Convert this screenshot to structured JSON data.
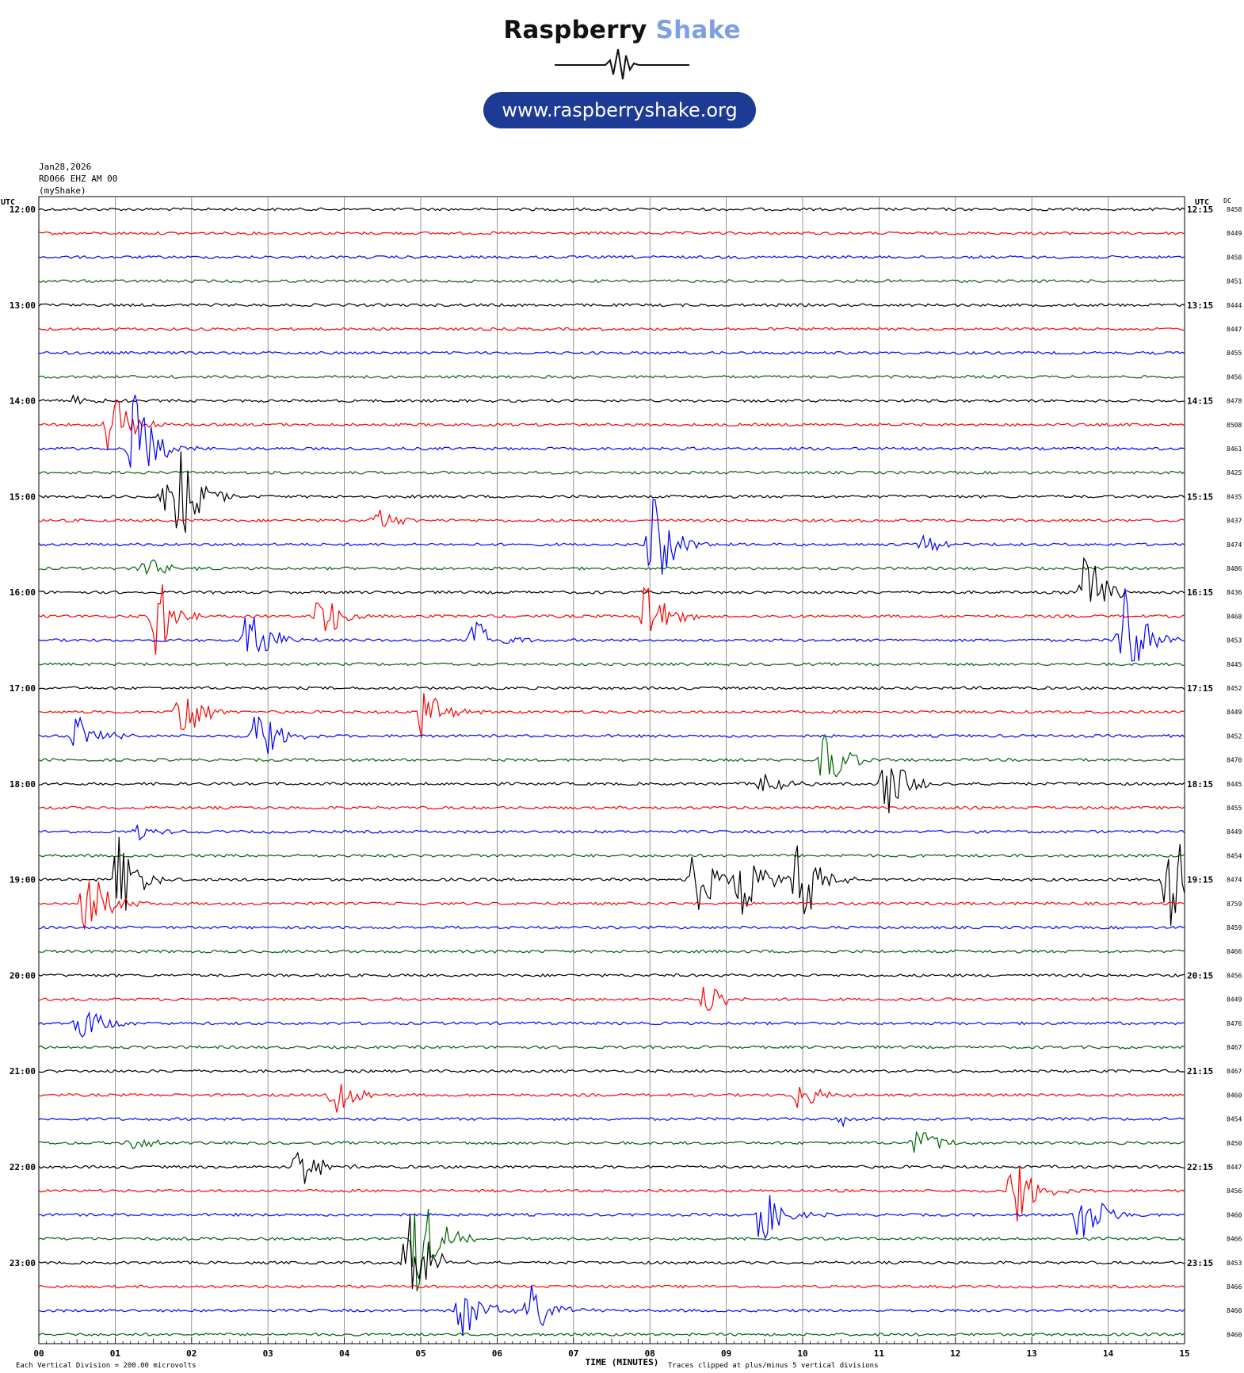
{
  "header": {
    "brand_word1": "Raspberry",
    "brand_word2": "Shake",
    "url": "www.raspberryshake.org",
    "date": "Jan28,2026",
    "station": "RD066 EHZ AM 00",
    "source": "(myShake)"
  },
  "colors": {
    "brand_accent": "#7f9fe3",
    "url_pill": "#1d3b95",
    "trace_cycle": [
      "#000000",
      "#ff0000",
      "#0000ff",
      "#006400"
    ]
  },
  "chart_data": {
    "type": "line",
    "title": "",
    "xlabel": "TIME (MINUTES)",
    "left_axis_label": "UTC",
    "right_axis_label": "UTC",
    "dc_label": "DC",
    "xlim": [
      0,
      15
    ],
    "x_ticks": [
      "00",
      "01",
      "02",
      "03",
      "04",
      "05",
      "06",
      "07",
      "08",
      "09",
      "10",
      "11",
      "12",
      "13",
      "14",
      "15"
    ],
    "grid": true,
    "left_time_labels": [
      "12:00",
      "13:00",
      "14:00",
      "15:00",
      "16:00",
      "17:00",
      "18:00",
      "19:00",
      "20:00",
      "21:00",
      "22:00",
      "23:00"
    ],
    "right_time_labels": [
      "12:15",
      "13:15",
      "14:15",
      "15:15",
      "16:15",
      "17:15",
      "18:15",
      "19:15",
      "20:15",
      "21:15",
      "22:15",
      "23:15"
    ],
    "dc_values": [
      "8458",
      "8449",
      "8458",
      "8451",
      "8444",
      "8447",
      "8455",
      "8456",
      "8478",
      "8508",
      "8461",
      "8425",
      "8435",
      "8437",
      "8474",
      "8486",
      "8436",
      "8468",
      "8453",
      "8445",
      "8452",
      "8449",
      "8452",
      "8470",
      "8445",
      "8455",
      "8449",
      "8454",
      "8474",
      "8759",
      "8459",
      "8466",
      "8456",
      "8449",
      "8476",
      "8467",
      "8467",
      "8460",
      "8454",
      "8450",
      "8447",
      "8456",
      "8460",
      "8466",
      "8453",
      "8466",
      "8460",
      "8460"
    ],
    "trace_count": 48,
    "minutes_per_trace": 15,
    "events": [
      {
        "trace": 8,
        "minute": 0.45,
        "amp": 0.4
      },
      {
        "trace": 9,
        "minute": 0.95,
        "amp": 3.2
      },
      {
        "trace": 10,
        "minute": 1.25,
        "amp": 4.5
      },
      {
        "trace": 12,
        "minute": 1.85,
        "amp": 3.8
      },
      {
        "trace": 12,
        "minute": 1.65,
        "amp": 1.2
      },
      {
        "trace": 13,
        "minute": 4.45,
        "amp": 1.0
      },
      {
        "trace": 14,
        "minute": 8.05,
        "amp": 4.0
      },
      {
        "trace": 14,
        "minute": 11.6,
        "amp": 0.9
      },
      {
        "trace": 15,
        "minute": 1.4,
        "amp": 1.0
      },
      {
        "trace": 16,
        "minute": 13.7,
        "amp": 3.5
      },
      {
        "trace": 17,
        "minute": 1.55,
        "amp": 3.5
      },
      {
        "trace": 17,
        "minute": 3.7,
        "amp": 2.5
      },
      {
        "trace": 17,
        "minute": 7.95,
        "amp": 3.2
      },
      {
        "trace": 18,
        "minute": 2.75,
        "amp": 3.2
      },
      {
        "trace": 18,
        "minute": 5.7,
        "amp": 2.2
      },
      {
        "trace": 18,
        "minute": 14.2,
        "amp": 5.0
      },
      {
        "trace": 21,
        "minute": 1.85,
        "amp": 3.0
      },
      {
        "trace": 21,
        "minute": 5.0,
        "amp": 2.3
      },
      {
        "trace": 22,
        "minute": 0.5,
        "amp": 1.8
      },
      {
        "trace": 22,
        "minute": 2.85,
        "amp": 2.8
      },
      {
        "trace": 23,
        "minute": 10.3,
        "amp": 2.8
      },
      {
        "trace": 24,
        "minute": 11.1,
        "amp": 3.0
      },
      {
        "trace": 24,
        "minute": 9.5,
        "amp": 1.0
      },
      {
        "trace": 26,
        "minute": 1.3,
        "amp": 0.6
      },
      {
        "trace": 28,
        "minute": 1.05,
        "amp": 3.5
      },
      {
        "trace": 28,
        "minute": 8.6,
        "amp": 3.2
      },
      {
        "trace": 28,
        "minute": 9.2,
        "amp": 3.5
      },
      {
        "trace": 28,
        "minute": 9.95,
        "amp": 5.0
      },
      {
        "trace": 28,
        "minute": 14.8,
        "amp": 5.0
      },
      {
        "trace": 29,
        "minute": 0.6,
        "amp": 3.8
      },
      {
        "trace": 33,
        "minute": 8.75,
        "amp": 1.6
      },
      {
        "trace": 34,
        "minute": 0.55,
        "amp": 1.8
      },
      {
        "trace": 37,
        "minute": 3.85,
        "amp": 2.5
      },
      {
        "trace": 37,
        "minute": 9.95,
        "amp": 1.4
      },
      {
        "trace": 38,
        "minute": 10.5,
        "amp": 0.6
      },
      {
        "trace": 39,
        "minute": 1.2,
        "amp": 0.7
      },
      {
        "trace": 39,
        "minute": 11.5,
        "amp": 1.6
      },
      {
        "trace": 40,
        "minute": 3.4,
        "amp": 2.0
      },
      {
        "trace": 41,
        "minute": 12.75,
        "amp": 3.2
      },
      {
        "trace": 42,
        "minute": 9.45,
        "amp": 2.5
      },
      {
        "trace": 42,
        "minute": 13.65,
        "amp": 3.2
      },
      {
        "trace": 43,
        "minute": 4.95,
        "amp": 4.8
      },
      {
        "trace": 44,
        "minute": 4.85,
        "amp": 4.8
      },
      {
        "trace": 46,
        "minute": 5.55,
        "amp": 2.5
      },
      {
        "trace": 46,
        "minute": 6.45,
        "amp": 2.2
      }
    ]
  },
  "footer": {
    "vertical_division": "Each Vertical Division =  200.00 microvolts",
    "clip_note": "Traces clipped at plus/minus 5 vertical divisions"
  }
}
